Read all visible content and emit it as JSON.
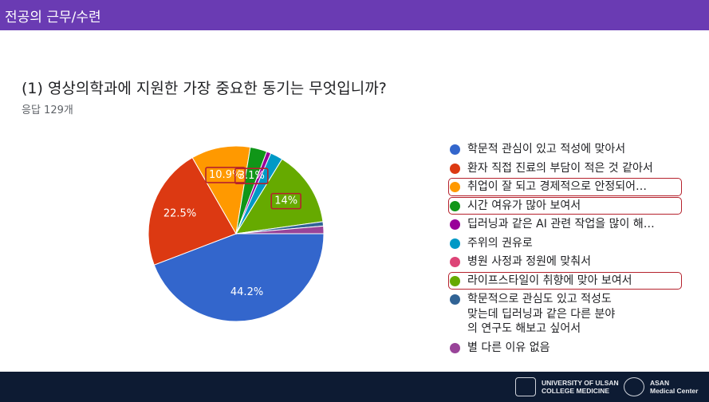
{
  "header": {
    "title": "전공의 근무/수련"
  },
  "question": {
    "title": "(1) 영상의학과에 지원한 가장 중요한 동기는 무엇입니까?",
    "responses": "응답 129개"
  },
  "chart_data": {
    "type": "pie",
    "title": "(1) 영상의학과에 지원한 가장 중요한 동기는 무엇입니까?",
    "subtitle": "응답 129개",
    "legend_position": "right",
    "slices": [
      {
        "label": "학문적 관심이 있고 적성에 맞아서",
        "value": 44.2,
        "color": "#3366cc",
        "data_label": "44.2%",
        "highlighted": false
      },
      {
        "label": "환자 직접 진료의 부담이 적은 것 같아서",
        "value": 22.5,
        "color": "#dc3912",
        "data_label": "22.5%",
        "highlighted": false
      },
      {
        "label": "취업이 잘 되고 경제적으로 안정되어…",
        "value": 10.9,
        "color": "#ff9900",
        "data_label": "10.9%",
        "highlighted": true
      },
      {
        "label": "시간 여유가 많아 보여서",
        "value": 3.1,
        "color": "#109618",
        "data_label": "3.1%",
        "highlighted": true
      },
      {
        "label": "딥러닝과 같은 AI 관련 작업을 많이 해…",
        "value": 0.8,
        "color": "#990099",
        "data_label": "",
        "highlighted": false
      },
      {
        "label": "주위의 권유로",
        "value": 2.3,
        "color": "#0099c6",
        "data_label": "",
        "highlighted": false
      },
      {
        "label": "병원 사정과 정원에 맞춰서",
        "value": 0.0,
        "color": "#dd4477",
        "data_label": "",
        "highlighted": false
      },
      {
        "label": "라이프스타일이 취향에 맞아 보여서",
        "value": 14.0,
        "color": "#66aa00",
        "data_label": "14%",
        "highlighted": true
      },
      {
        "label": "학문적으로 관심도 있고 적성도\n맞는데 딥러닝과 같은 다른 분야\n의 연구도 해보고 싶어서",
        "value": 0.8,
        "color": "#316395",
        "data_label": "",
        "highlighted": false
      },
      {
        "label": "별 다른 이유 없음",
        "value": 1.4,
        "color": "#994499",
        "data_label": "",
        "highlighted": false
      }
    ]
  },
  "footer": {
    "logo1_line1": "UNIVERSITY OF ULSAN",
    "logo1_line2": "COLLEGE MEDICINE",
    "logo2_line1": "ASAN",
    "logo2_line2": "Medical Center"
  }
}
